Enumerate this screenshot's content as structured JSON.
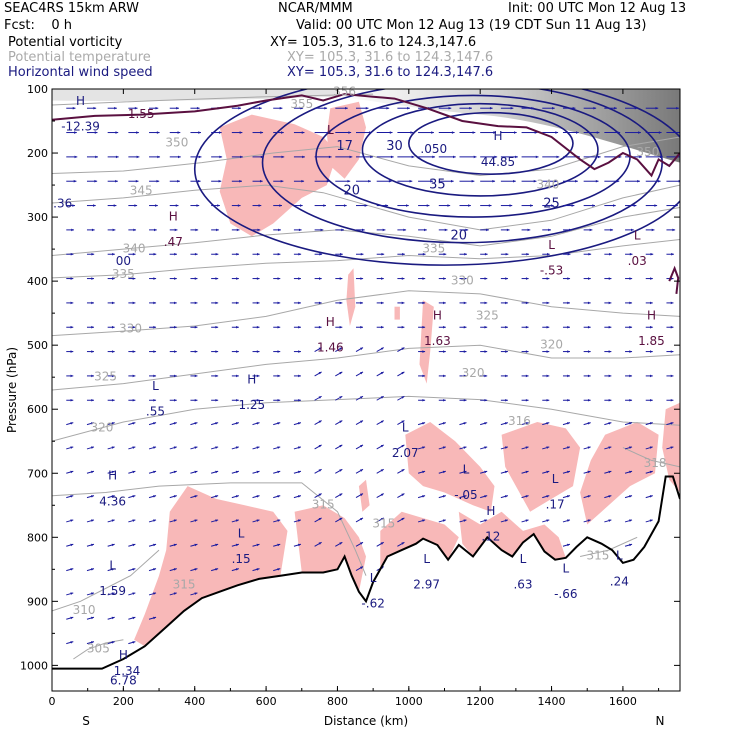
{
  "header": {
    "model": "SEAC4RS 15km ARW",
    "center": "NCAR/MMM",
    "init": "Init: 00 UTC Mon 12 Aug 13",
    "fcst": "Fcst:    0 h",
    "valid": "Valid: 00 UTC Mon 12 Aug 13 (19 CDT Sun 11 Aug 13)",
    "fields": [
      {
        "name": "Potential vorticity",
        "xy": "XY= 105.3, 31.6 to 124.3,147.6"
      },
      {
        "name": "Potential temperature",
        "xy": "XY= 105.3, 31.6 to 124.3,147.6"
      },
      {
        "name": "Horizontal wind speed",
        "xy": "XY= 105.3, 31.6 to 124.3,147.6"
      }
    ]
  },
  "colors": {
    "pv_fill": "#f8b8b8",
    "pv_contour": "#5a1040",
    "theta": "#a8a8a8",
    "wind_contour": "#1a1a80",
    "wind_arrow": "#1a1aa0",
    "terrain": "#000000",
    "axis": "#000000"
  },
  "chart_data": {
    "type": "cross-section",
    "xlabel": "Distance (km)",
    "ylabel": "Pressure (hPa)",
    "xlim": [
      0,
      1760
    ],
    "ylim": [
      1040,
      100
    ],
    "x_ticks": [
      "0",
      "200",
      "400",
      "600",
      "800",
      "1000",
      "1200",
      "1400",
      "1600"
    ],
    "y_ticks": [
      "100",
      "200",
      "300",
      "400",
      "500",
      "600",
      "700",
      "800",
      "900",
      "1000"
    ],
    "left_end_label": "S",
    "right_end_label": "N",
    "terrain": [
      [
        0,
        1005
      ],
      [
        140,
        1005
      ],
      [
        200,
        990
      ],
      [
        260,
        970
      ],
      [
        320,
        940
      ],
      [
        370,
        915
      ],
      [
        420,
        895
      ],
      [
        470,
        885
      ],
      [
        520,
        875
      ],
      [
        580,
        865
      ],
      [
        640,
        860
      ],
      [
        700,
        855
      ],
      [
        760,
        855
      ],
      [
        800,
        850
      ],
      [
        820,
        830
      ],
      [
        840,
        860
      ],
      [
        860,
        885
      ],
      [
        880,
        900
      ],
      [
        900,
        870
      ],
      [
        940,
        830
      ],
      [
        980,
        820
      ],
      [
        1020,
        810
      ],
      [
        1040,
        802
      ],
      [
        1080,
        812
      ],
      [
        1110,
        835
      ],
      [
        1140,
        812
      ],
      [
        1180,
        830
      ],
      [
        1220,
        800
      ],
      [
        1260,
        820
      ],
      [
        1290,
        830
      ],
      [
        1320,
        808
      ],
      [
        1350,
        795
      ],
      [
        1380,
        822
      ],
      [
        1410,
        835
      ],
      [
        1440,
        832
      ],
      [
        1470,
        815
      ],
      [
        1500,
        800
      ],
      [
        1540,
        810
      ],
      [
        1570,
        820
      ],
      [
        1600,
        840
      ],
      [
        1630,
        835
      ],
      [
        1660,
        815
      ],
      [
        1700,
        775
      ],
      [
        1720,
        705
      ],
      [
        1740,
        705
      ],
      [
        1760,
        740
      ]
    ],
    "theta_labels": [
      {
        "label": "350",
        "x": 350,
        "p": 190
      },
      {
        "label": "345",
        "x": 250,
        "p": 265
      },
      {
        "label": "340",
        "x": 230,
        "p": 355
      },
      {
        "label": "335",
        "x": 200,
        "p": 395
      },
      {
        "label": "330",
        "x": 220,
        "p": 480
      },
      {
        "label": "325",
        "x": 150,
        "p": 555
      },
      {
        "label": "320",
        "x": 140,
        "p": 635
      },
      {
        "label": "315",
        "x": 760,
        "p": 755
      },
      {
        "label": "310",
        "x": 90,
        "p": 920
      },
      {
        "label": "305",
        "x": 130,
        "p": 980
      },
      {
        "label": "355",
        "x": 700,
        "p": 130
      },
      {
        "label": "340",
        "x": 1390,
        "p": 255
      },
      {
        "label": "335",
        "x": 1070,
        "p": 355
      },
      {
        "label": "330",
        "x": 1150,
        "p": 405
      },
      {
        "label": "325",
        "x": 1220,
        "p": 460
      },
      {
        "label": "320",
        "x": 1400,
        "p": 505
      },
      {
        "label": "320",
        "x": 1180,
        "p": 550
      },
      {
        "label": "316",
        "x": 1310,
        "p": 625
      },
      {
        "label": "318",
        "x": 1690,
        "p": 690
      },
      {
        "label": "315",
        "x": 930,
        "p": 785
      },
      {
        "label": "315",
        "x": 1530,
        "p": 835
      },
      {
        "label": "315",
        "x": 370,
        "p": 880
      },
      {
        "label": "350",
        "x": 1670,
        "p": 205
      },
      {
        "label": "356",
        "x": 820,
        "p": 110
      }
    ],
    "wind_labels": [
      {
        "label": "30",
        "x": 960,
        "p": 195
      },
      {
        "label": "35",
        "x": 1080,
        "p": 255
      },
      {
        "label": "25",
        "x": 1400,
        "p": 285
      },
      {
        "label": "20",
        "x": 1140,
        "p": 335
      },
      {
        "label": "20",
        "x": 840,
        "p": 265
      },
      {
        "label": "17",
        "x": 820,
        "p": 195
      }
    ],
    "extrema": [
      {
        "label": "H",
        "value": "-12.39",
        "x": 80,
        "p": 125,
        "color": "wind"
      },
      {
        "label": "",
        "value": "1.55",
        "x": 250,
        "p": 145,
        "color": "pv"
      },
      {
        "label": "H",
        "value": "44.85",
        "x": 1250,
        "p": 180,
        "color": "wind"
      },
      {
        "label": "L",
        "value": "",
        "x": 780,
        "p": 170,
        "color": "pv"
      },
      {
        "label": "",
        "value": ".050",
        "x": 1070,
        "p": 200,
        "color": "wind"
      },
      {
        "label": "",
        "value": ".36",
        "x": 30,
        "p": 285,
        "color": "wind"
      },
      {
        "label": "H",
        "value": ".47",
        "x": 340,
        "p": 305,
        "color": "pv"
      },
      {
        "label": "",
        "value": "00",
        "x": 200,
        "p": 375,
        "color": "wind"
      },
      {
        "label": "L",
        "value": "-.53",
        "x": 1400,
        "p": 350,
        "color": "pv"
      },
      {
        "label": "L",
        "value": ".03",
        "x": 1640,
        "p": 335,
        "color": "pv"
      },
      {
        "label": "H",
        "value": "1.46",
        "x": 780,
        "p": 470,
        "color": "pv"
      },
      {
        "label": "H",
        "value": "1.63",
        "x": 1080,
        "p": 460,
        "color": "pv"
      },
      {
        "label": "H",
        "value": "1.85",
        "x": 1680,
        "p": 460,
        "color": "pv"
      },
      {
        "label": "L",
        "value": ".55",
        "x": 290,
        "p": 570,
        "color": "wind"
      },
      {
        "label": "H",
        "value": "1.25",
        "x": 560,
        "p": 560,
        "color": "wind"
      },
      {
        "label": "L",
        "value": "2.07",
        "x": 990,
        "p": 635,
        "color": "wind"
      },
      {
        "label": "L",
        "value": "-.05",
        "x": 1160,
        "p": 700,
        "color": "wind"
      },
      {
        "label": "L",
        "value": ".17",
        "x": 1410,
        "p": 715,
        "color": "wind"
      },
      {
        "label": "H",
        "value": "4.36",
        "x": 170,
        "p": 710,
        "color": "wind"
      },
      {
        "label": "H",
        "value": ".12",
        "x": 1230,
        "p": 765,
        "color": "wind"
      },
      {
        "label": "L",
        "value": ".15",
        "x": 530,
        "p": 800,
        "color": "wind"
      },
      {
        "label": "L",
        "value": "1.59",
        "x": 170,
        "p": 850,
        "color": "wind"
      },
      {
        "label": "L",
        "value": "2.97",
        "x": 1050,
        "p": 840,
        "color": "wind"
      },
      {
        "label": "L",
        "value": ".63",
        "x": 1320,
        "p": 840,
        "color": "wind"
      },
      {
        "label": "L",
        "value": "-.66",
        "x": 1440,
        "p": 855,
        "color": "wind"
      },
      {
        "label": "L",
        "value": ".24",
        "x": 1590,
        "p": 835,
        "color": "wind"
      },
      {
        "label": "L",
        "value": "-.62",
        "x": 900,
        "p": 870,
        "color": "wind"
      },
      {
        "label": "H",
        "value": "6.78",
        "x": 200,
        "p": 990,
        "color": "wind"
      },
      {
        "label": "",
        "value": "1.34",
        "x": 210,
        "p": 1015,
        "color": "wind"
      }
    ]
  }
}
